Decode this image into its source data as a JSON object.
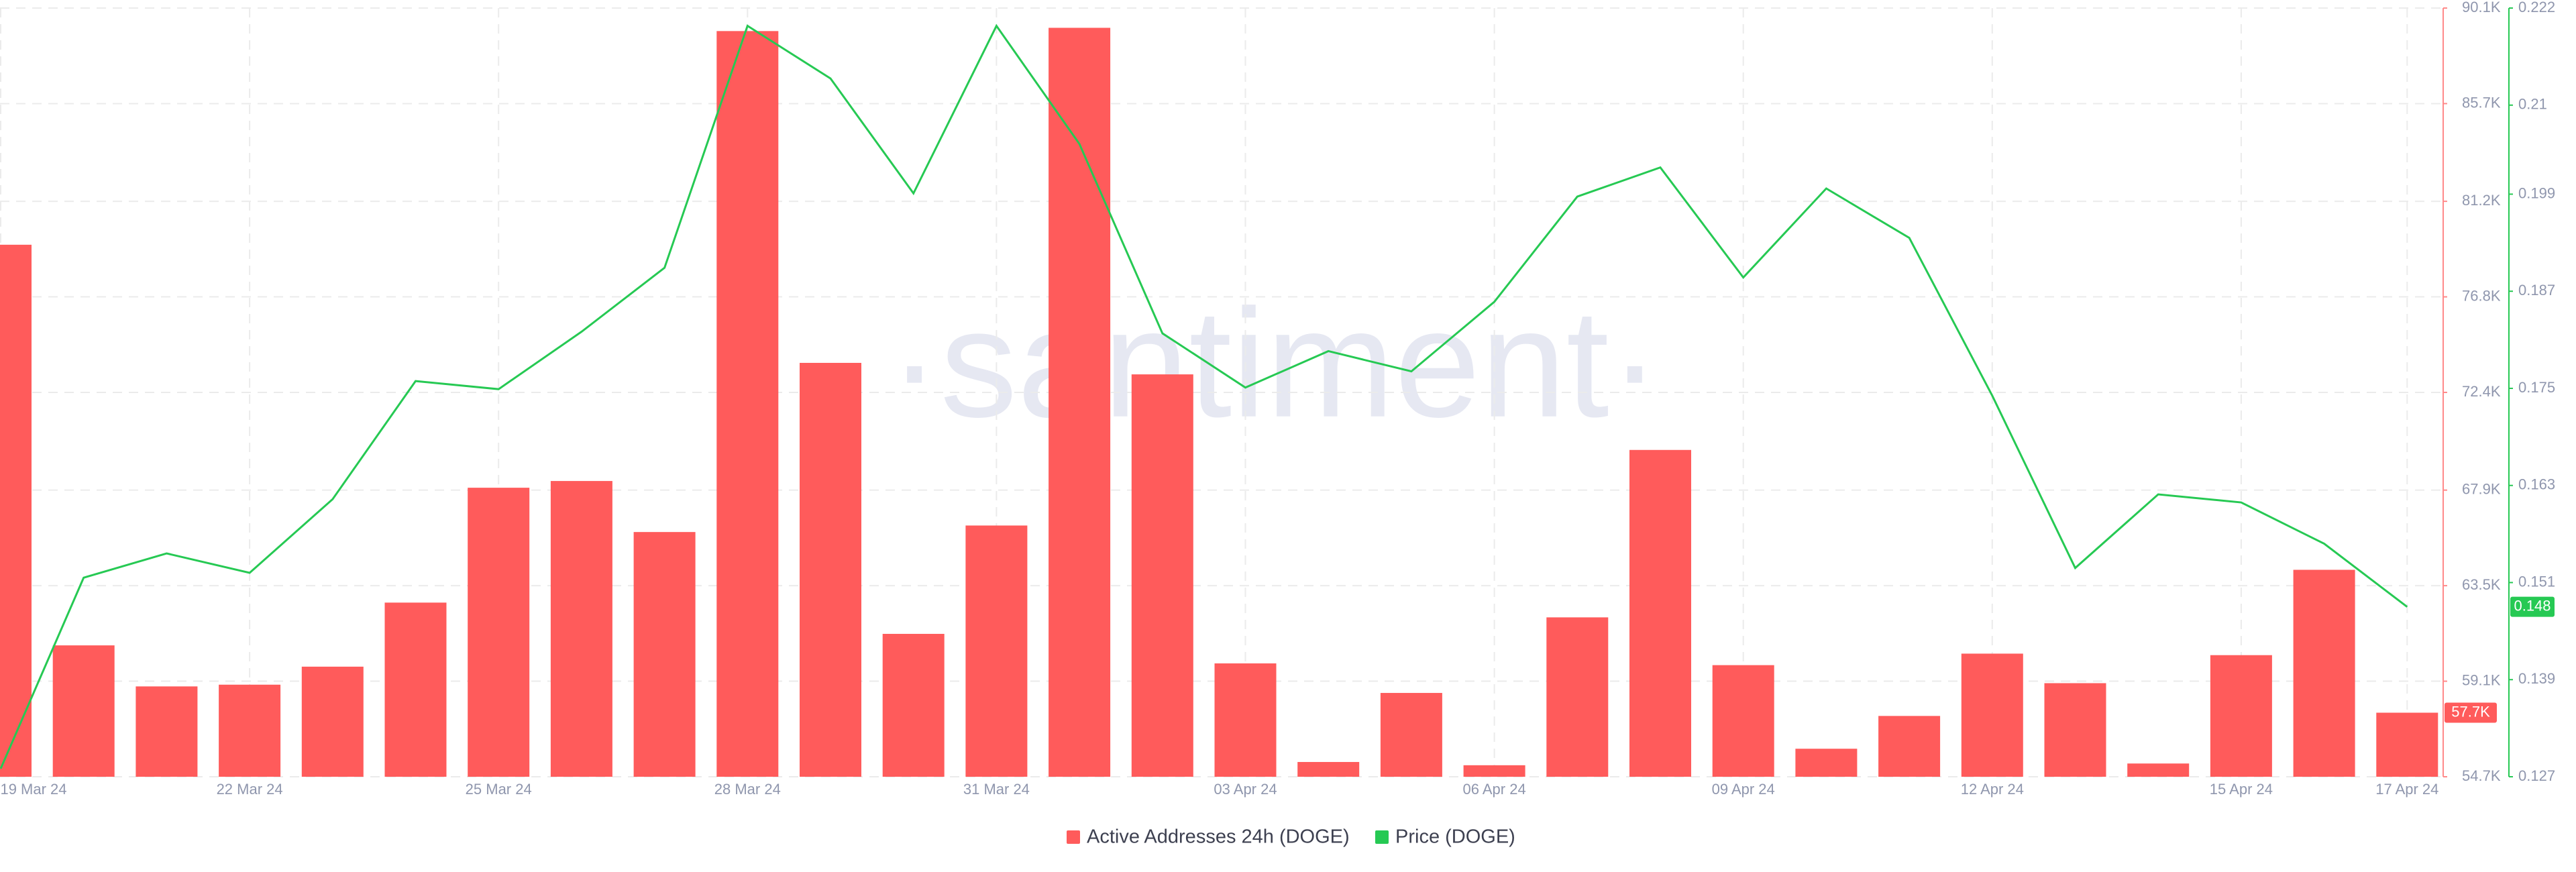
{
  "chart_data": {
    "type": "combo",
    "watermark": "·santiment·",
    "categories": [
      "19 Mar 24",
      null,
      null,
      "22 Mar 24",
      null,
      null,
      "25 Mar 24",
      null,
      null,
      "28 Mar 24",
      null,
      null,
      "31 Mar 24",
      null,
      null,
      "03 Apr 24",
      null,
      null,
      "06 Apr 24",
      null,
      null,
      "09 Apr 24",
      null,
      null,
      "12 Apr 24",
      null,
      null,
      "15 Apr 24",
      null,
      "17 Apr 24"
    ],
    "series": [
      {
        "name": "Active Addresses 24h (DOGE)",
        "type": "bar",
        "color": "#ff5b5b",
        "values": [
          79200,
          60750,
          58860,
          58940,
          59770,
          62720,
          68010,
          68320,
          65970,
          89040,
          73760,
          61280,
          66270,
          89190,
          73230,
          59920,
          55380,
          58560,
          55230,
          62040,
          69750,
          59840,
          55990,
          57500,
          60370,
          59010,
          55310,
          60300,
          64230,
          57650
        ],
        "value_labels": [
          null,
          null,
          null,
          null,
          null,
          null,
          null,
          null,
          null,
          null,
          null,
          null,
          null,
          null,
          null,
          null,
          null,
          null,
          null,
          null,
          null,
          null,
          null,
          null,
          null,
          null,
          null,
          null,
          null,
          "57.7K"
        ]
      },
      {
        "name": "Price (DOGE)",
        "type": "line",
        "axis": "y2",
        "color": "#26c953",
        "values": [
          0.128,
          0.1516,
          0.1546,
          0.1522,
          0.1613,
          0.1759,
          0.1749,
          0.182,
          0.1899,
          0.2198,
          0.2133,
          0.1991,
          0.2198,
          0.2052,
          0.1818,
          0.1751,
          0.1796,
          0.1771,
          0.1857,
          0.1987,
          0.2023,
          0.1887,
          0.1997,
          0.1936,
          0.1741,
          0.1528,
          0.1619,
          0.1609,
          0.1558,
          0.148
        ]
      }
    ],
    "ylim": [
      54700,
      90100
    ],
    "yticks": [
      {
        "value": 54700,
        "label": "54.7K"
      },
      {
        "value": 59100,
        "label": "59.1K"
      },
      {
        "value": 63500,
        "label": "63.5K"
      },
      {
        "value": 67900,
        "label": "67.9K"
      },
      {
        "value": 72400,
        "label": "72.4K"
      },
      {
        "value": 76800,
        "label": "76.8K"
      },
      {
        "value": 81200,
        "label": "81.2K"
      },
      {
        "value": 85700,
        "label": "85.7K"
      },
      {
        "value": 90100,
        "label": "90.1K"
      }
    ],
    "y2lim": [
      0.127,
      0.222
    ],
    "y2ticks": [
      0.127,
      0.139,
      0.151,
      0.163,
      0.175,
      0.187,
      0.199,
      0.21,
      0.222
    ],
    "grid": true
  }
}
